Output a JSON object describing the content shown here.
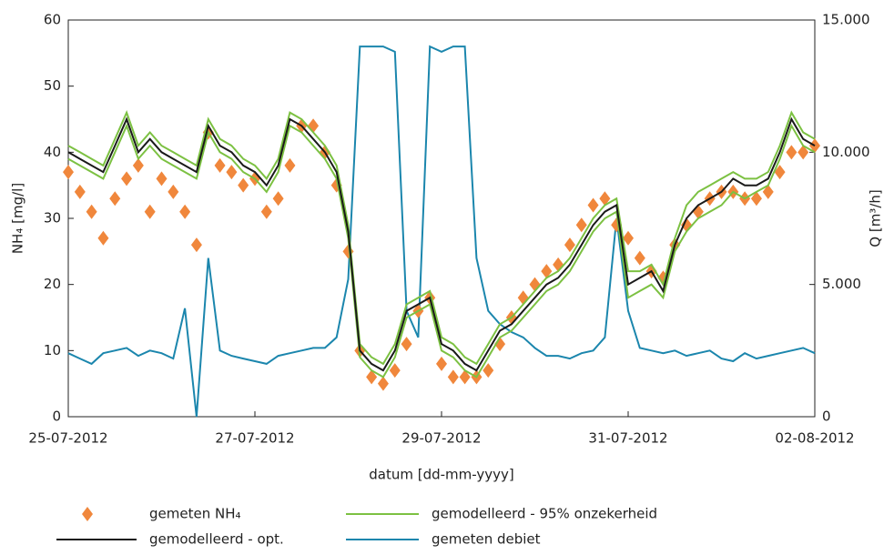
{
  "chart_data": {
    "type": "line",
    "x_label": "datum [dd-mm-yyyy]",
    "y_label": "NH₄ [mg/l]",
    "y2_label": "Q [m³/h]",
    "x": [
      "2012-07-25T00:00",
      "2012-07-25T03:00",
      "2012-07-25T06:00",
      "2012-07-25T09:00",
      "2012-07-25T12:00",
      "2012-07-25T15:00",
      "2012-07-25T18:00",
      "2012-07-25T21:00",
      "2012-07-26T00:00",
      "2012-07-26T03:00",
      "2012-07-26T06:00",
      "2012-07-26T09:00",
      "2012-07-26T12:00",
      "2012-07-26T15:00",
      "2012-07-26T18:00",
      "2012-07-26T21:00",
      "2012-07-27T00:00",
      "2012-07-27T03:00",
      "2012-07-27T06:00",
      "2012-07-27T09:00",
      "2012-07-27T12:00",
      "2012-07-27T15:00",
      "2012-07-27T18:00",
      "2012-07-27T21:00",
      "2012-07-28T00:00",
      "2012-07-28T03:00",
      "2012-07-28T06:00",
      "2012-07-28T09:00",
      "2012-07-28T12:00",
      "2012-07-28T15:00",
      "2012-07-28T18:00",
      "2012-07-28T21:00",
      "2012-07-29T00:00",
      "2012-07-29T03:00",
      "2012-07-29T06:00",
      "2012-07-29T09:00",
      "2012-07-29T12:00",
      "2012-07-29T15:00",
      "2012-07-29T18:00",
      "2012-07-29T21:00",
      "2012-07-30T00:00",
      "2012-07-30T03:00",
      "2012-07-30T06:00",
      "2012-07-30T09:00",
      "2012-07-30T12:00",
      "2012-07-30T15:00",
      "2012-07-30T18:00",
      "2012-07-30T21:00",
      "2012-07-31T00:00",
      "2012-07-31T03:00",
      "2012-07-31T06:00",
      "2012-07-31T09:00",
      "2012-07-31T12:00",
      "2012-07-31T15:00",
      "2012-07-31T18:00",
      "2012-07-31T21:00",
      "2012-08-01T00:00",
      "2012-08-01T03:00",
      "2012-08-01T06:00",
      "2012-08-01T09:00",
      "2012-08-01T12:00",
      "2012-08-01T15:00",
      "2012-08-01T18:00",
      "2012-08-01T21:00",
      "2012-08-02T00:00"
    ],
    "xlim": [
      "2012-07-25T00:00",
      "2012-08-02T00:00"
    ],
    "xticks": [
      {
        "value": "2012-07-25T00:00",
        "label": "25-07-2012"
      },
      {
        "value": "2012-07-27T00:00",
        "label": "27-07-2012"
      },
      {
        "value": "2012-07-29T00:00",
        "label": "29-07-2012"
      },
      {
        "value": "2012-07-31T00:00",
        "label": "31-07-2012"
      },
      {
        "value": "2012-08-02T00:00",
        "label": "02-08-2012"
      }
    ],
    "ylim": [
      0,
      60
    ],
    "yticks": [
      0,
      10,
      20,
      30,
      40,
      50,
      60
    ],
    "y2lim": [
      0,
      15000
    ],
    "y2ticks": [
      0,
      {
        "value": 5000,
        "label": "5.000"
      },
      {
        "value": 10000,
        "label": "10.000"
      },
      {
        "value": 15000,
        "label": "15.000"
      }
    ],
    "series": [
      {
        "name": "gemeten NH₄",
        "kind": "scatter",
        "color": "#f0873c",
        "values": [
          37,
          34,
          31,
          27,
          33,
          36,
          38,
          31,
          36,
          34,
          31,
          26,
          43,
          38,
          37,
          35,
          36,
          31,
          33,
          38,
          44,
          44,
          40,
          35,
          25,
          10,
          6,
          5,
          7,
          11,
          16,
          18,
          8,
          6,
          6,
          6,
          7,
          11,
          15,
          18,
          20,
          22,
          23,
          26,
          29,
          32,
          33,
          29,
          27,
          24,
          22,
          21,
          26,
          29,
          31,
          33,
          34,
          34,
          33,
          33,
          34,
          37,
          40,
          40,
          41
        ]
      },
      {
        "name": "gemodelleerd - opt.",
        "kind": "line",
        "color": "#1a1a1a",
        "values": [
          40,
          39,
          38,
          37,
          41,
          45,
          40,
          42,
          40,
          39,
          38,
          37,
          44,
          41,
          40,
          38,
          37,
          35,
          38,
          45,
          44,
          42,
          40,
          37,
          28,
          10,
          8,
          7,
          10,
          16,
          17,
          18,
          11,
          10,
          8,
          7,
          10,
          13,
          14,
          16,
          18,
          20,
          21,
          23,
          26,
          29,
          31,
          32,
          20,
          21,
          22,
          19,
          26,
          30,
          32,
          33,
          34,
          36,
          35,
          35,
          36,
          40,
          45,
          42,
          41
        ]
      },
      {
        "name": "gemodelleerd - 95% onzekerheid",
        "kind": "band",
        "color": "#7cc142",
        "upper": [
          41,
          40,
          39,
          38,
          42,
          46,
          41,
          43,
          41,
          40,
          39,
          38,
          45,
          42,
          41,
          39,
          38,
          36,
          39,
          46,
          45,
          43,
          41,
          38,
          29,
          11,
          9,
          8,
          11,
          17,
          18,
          19,
          12,
          11,
          9,
          8,
          11,
          14,
          15,
          17,
          19,
          21,
          22,
          24,
          27,
          30,
          32,
          33,
          22,
          22,
          23,
          20,
          27,
          32,
          34,
          35,
          36,
          37,
          36,
          36,
          37,
          41,
          46,
          43,
          42
        ],
        "lower": [
          39,
          38,
          37,
          36,
          40,
          44,
          39,
          41,
          39,
          38,
          37,
          36,
          43,
          40,
          39,
          37,
          36,
          34,
          37,
          44,
          43,
          41,
          39,
          36,
          27,
          9,
          7,
          6,
          9,
          15,
          16,
          17,
          10,
          9,
          7,
          6,
          9,
          12,
          13,
          15,
          17,
          19,
          20,
          22,
          25,
          28,
          30,
          31,
          18,
          19,
          20,
          18,
          25,
          28,
          30,
          31,
          32,
          34,
          33,
          34,
          35,
          39,
          44,
          41,
          40
        ]
      },
      {
        "name": "gemeten debiet",
        "kind": "line",
        "axis": "y2",
        "color": "#1b86ad",
        "values": [
          2400,
          2200,
          2000,
          2400,
          2500,
          2600,
          2300,
          2500,
          2400,
          2200,
          4100,
          0,
          6000,
          2500,
          2300,
          2200,
          2100,
          2000,
          2300,
          2400,
          2500,
          2600,
          2600,
          3000,
          5200,
          14000,
          14000,
          14000,
          13800,
          4000,
          3000,
          14000,
          13800,
          14000,
          14000,
          6000,
          4000,
          3500,
          3200,
          3000,
          2600,
          2300,
          2300,
          2200,
          2400,
          2500,
          3000,
          7500,
          4000,
          2600,
          2500,
          2400,
          2500,
          2300,
          2400,
          2500,
          2200,
          2100,
          2400,
          2200,
          2300,
          2400,
          2500,
          2600,
          2400
        ]
      }
    ]
  }
}
